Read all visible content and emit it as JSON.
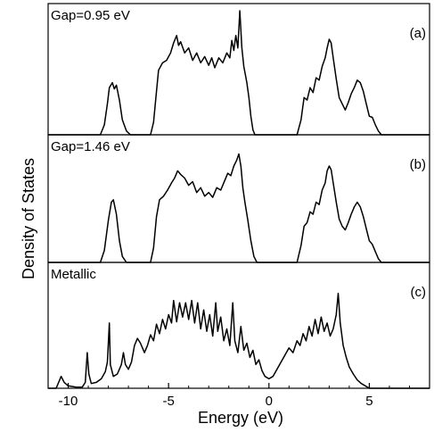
{
  "chart_data": {
    "type": "line",
    "xlabel": "Energy (eV)",
    "ylabel": "Density of States",
    "xlim": [
      -11,
      8
    ],
    "xticks": [
      {
        "value": -10,
        "label": "-10"
      },
      {
        "value": -5,
        "label": "-5"
      },
      {
        "value": 0,
        "label": "0"
      },
      {
        "value": 5,
        "label": "5"
      }
    ],
    "grid": false,
    "panels": [
      {
        "id": "a",
        "tag": "(a)",
        "label": "Gap=0.95 eV",
        "series": [
          {
            "x": -11,
            "y": 0
          },
          {
            "x": -8.4,
            "y": 0
          },
          {
            "x": -8.2,
            "y": 0.08
          },
          {
            "x": -8.05,
            "y": 0.25
          },
          {
            "x": -7.95,
            "y": 0.38
          },
          {
            "x": -7.8,
            "y": 0.42
          },
          {
            "x": -7.7,
            "y": 0.37
          },
          {
            "x": -7.6,
            "y": 0.4
          },
          {
            "x": -7.45,
            "y": 0.28
          },
          {
            "x": -7.3,
            "y": 0.12
          },
          {
            "x": -7.1,
            "y": 0.03
          },
          {
            "x": -6.9,
            "y": 0
          },
          {
            "x": -5.9,
            "y": 0
          },
          {
            "x": -5.75,
            "y": 0.1
          },
          {
            "x": -5.6,
            "y": 0.35
          },
          {
            "x": -5.5,
            "y": 0.52
          },
          {
            "x": -5.3,
            "y": 0.58
          },
          {
            "x": -5.1,
            "y": 0.6
          },
          {
            "x": -4.9,
            "y": 0.66
          },
          {
            "x": -4.75,
            "y": 0.74
          },
          {
            "x": -4.6,
            "y": 0.8
          },
          {
            "x": -4.5,
            "y": 0.72
          },
          {
            "x": -4.4,
            "y": 0.75
          },
          {
            "x": -4.2,
            "y": 0.66
          },
          {
            "x": -4.0,
            "y": 0.7
          },
          {
            "x": -3.8,
            "y": 0.6
          },
          {
            "x": -3.6,
            "y": 0.66
          },
          {
            "x": -3.4,
            "y": 0.58
          },
          {
            "x": -3.2,
            "y": 0.63
          },
          {
            "x": -3.0,
            "y": 0.56
          },
          {
            "x": -2.85,
            "y": 0.62
          },
          {
            "x": -2.7,
            "y": 0.54
          },
          {
            "x": -2.5,
            "y": 0.62
          },
          {
            "x": -2.3,
            "y": 0.58
          },
          {
            "x": -2.1,
            "y": 0.66
          },
          {
            "x": -1.95,
            "y": 0.62
          },
          {
            "x": -1.85,
            "y": 0.76
          },
          {
            "x": -1.75,
            "y": 0.68
          },
          {
            "x": -1.65,
            "y": 0.8
          },
          {
            "x": -1.55,
            "y": 0.7
          },
          {
            "x": -1.45,
            "y": 1.0
          },
          {
            "x": -1.35,
            "y": 0.7
          },
          {
            "x": -1.25,
            "y": 0.55
          },
          {
            "x": -1.1,
            "y": 0.42
          },
          {
            "x": -1.0,
            "y": 0.3
          },
          {
            "x": -0.9,
            "y": 0.15
          },
          {
            "x": -0.8,
            "y": 0.04
          },
          {
            "x": -0.7,
            "y": 0
          },
          {
            "x": 1.4,
            "y": 0
          },
          {
            "x": 1.6,
            "y": 0.12
          },
          {
            "x": 1.75,
            "y": 0.3
          },
          {
            "x": 1.9,
            "y": 0.28
          },
          {
            "x": 2.05,
            "y": 0.38
          },
          {
            "x": 2.2,
            "y": 0.34
          },
          {
            "x": 2.35,
            "y": 0.46
          },
          {
            "x": 2.5,
            "y": 0.44
          },
          {
            "x": 2.65,
            "y": 0.55
          },
          {
            "x": 2.8,
            "y": 0.62
          },
          {
            "x": 2.9,
            "y": 0.7
          },
          {
            "x": 3.0,
            "y": 0.77
          },
          {
            "x": 3.1,
            "y": 0.74
          },
          {
            "x": 3.2,
            "y": 0.62
          },
          {
            "x": 3.35,
            "y": 0.45
          },
          {
            "x": 3.5,
            "y": 0.3
          },
          {
            "x": 3.65,
            "y": 0.25
          },
          {
            "x": 3.8,
            "y": 0.2
          },
          {
            "x": 3.95,
            "y": 0.26
          },
          {
            "x": 4.1,
            "y": 0.33
          },
          {
            "x": 4.25,
            "y": 0.38
          },
          {
            "x": 4.4,
            "y": 0.44
          },
          {
            "x": 4.55,
            "y": 0.42
          },
          {
            "x": 4.7,
            "y": 0.35
          },
          {
            "x": 4.85,
            "y": 0.25
          },
          {
            "x": 5.0,
            "y": 0.15
          },
          {
            "x": 5.15,
            "y": 0.14
          },
          {
            "x": 5.3,
            "y": 0.08
          },
          {
            "x": 5.45,
            "y": 0.03
          },
          {
            "x": 5.6,
            "y": 0
          },
          {
            "x": 8,
            "y": 0
          }
        ]
      },
      {
        "id": "b",
        "tag": "(b)",
        "label": "Gap=1.46 eV",
        "series": [
          {
            "x": -11,
            "y": 0
          },
          {
            "x": -8.4,
            "y": 0
          },
          {
            "x": -8.2,
            "y": 0.1
          },
          {
            "x": -8.0,
            "y": 0.35
          },
          {
            "x": -7.85,
            "y": 0.5
          },
          {
            "x": -7.75,
            "y": 0.52
          },
          {
            "x": -7.6,
            "y": 0.4
          },
          {
            "x": -7.45,
            "y": 0.18
          },
          {
            "x": -7.3,
            "y": 0.05
          },
          {
            "x": -7.1,
            "y": 0
          },
          {
            "x": -5.9,
            "y": 0
          },
          {
            "x": -5.75,
            "y": 0.12
          },
          {
            "x": -5.6,
            "y": 0.38
          },
          {
            "x": -5.45,
            "y": 0.52
          },
          {
            "x": -5.25,
            "y": 0.55
          },
          {
            "x": -5.05,
            "y": 0.6
          },
          {
            "x": -4.85,
            "y": 0.66
          },
          {
            "x": -4.7,
            "y": 0.7
          },
          {
            "x": -4.55,
            "y": 0.76
          },
          {
            "x": -4.4,
            "y": 0.73
          },
          {
            "x": -4.2,
            "y": 0.7
          },
          {
            "x": -4.0,
            "y": 0.64
          },
          {
            "x": -3.8,
            "y": 0.67
          },
          {
            "x": -3.6,
            "y": 0.58
          },
          {
            "x": -3.4,
            "y": 0.62
          },
          {
            "x": -3.2,
            "y": 0.55
          },
          {
            "x": -3.0,
            "y": 0.58
          },
          {
            "x": -2.8,
            "y": 0.54
          },
          {
            "x": -2.6,
            "y": 0.62
          },
          {
            "x": -2.4,
            "y": 0.6
          },
          {
            "x": -2.2,
            "y": 0.68
          },
          {
            "x": -2.05,
            "y": 0.74
          },
          {
            "x": -1.9,
            "y": 0.72
          },
          {
            "x": -1.75,
            "y": 0.8
          },
          {
            "x": -1.6,
            "y": 0.85
          },
          {
            "x": -1.5,
            "y": 0.9
          },
          {
            "x": -1.4,
            "y": 0.8
          },
          {
            "x": -1.3,
            "y": 0.62
          },
          {
            "x": -1.2,
            "y": 0.5
          },
          {
            "x": -1.05,
            "y": 0.35
          },
          {
            "x": -0.9,
            "y": 0.18
          },
          {
            "x": -0.75,
            "y": 0.05
          },
          {
            "x": -0.6,
            "y": 0
          },
          {
            "x": 1.4,
            "y": 0
          },
          {
            "x": 1.6,
            "y": 0.14
          },
          {
            "x": 1.75,
            "y": 0.3
          },
          {
            "x": 1.9,
            "y": 0.33
          },
          {
            "x": 2.05,
            "y": 0.42
          },
          {
            "x": 2.2,
            "y": 0.4
          },
          {
            "x": 2.35,
            "y": 0.5
          },
          {
            "x": 2.5,
            "y": 0.48
          },
          {
            "x": 2.65,
            "y": 0.6
          },
          {
            "x": 2.8,
            "y": 0.66
          },
          {
            "x": 2.9,
            "y": 0.76
          },
          {
            "x": 3.0,
            "y": 0.8
          },
          {
            "x": 3.1,
            "y": 0.77
          },
          {
            "x": 3.2,
            "y": 0.66
          },
          {
            "x": 3.35,
            "y": 0.5
          },
          {
            "x": 3.5,
            "y": 0.36
          },
          {
            "x": 3.65,
            "y": 0.3
          },
          {
            "x": 3.8,
            "y": 0.27
          },
          {
            "x": 3.95,
            "y": 0.33
          },
          {
            "x": 4.1,
            "y": 0.4
          },
          {
            "x": 4.25,
            "y": 0.46
          },
          {
            "x": 4.4,
            "y": 0.5
          },
          {
            "x": 4.55,
            "y": 0.46
          },
          {
            "x": 4.7,
            "y": 0.38
          },
          {
            "x": 4.85,
            "y": 0.28
          },
          {
            "x": 5.0,
            "y": 0.18
          },
          {
            "x": 5.15,
            "y": 0.15
          },
          {
            "x": 5.3,
            "y": 0.09
          },
          {
            "x": 5.45,
            "y": 0.03
          },
          {
            "x": 5.6,
            "y": 0
          },
          {
            "x": 8,
            "y": 0
          }
        ]
      },
      {
        "id": "c",
        "tag": "(c)",
        "label": "Metallic",
        "series": [
          {
            "x": -11,
            "y": 0
          },
          {
            "x": -10.6,
            "y": 0
          },
          {
            "x": -10.45,
            "y": 0.06
          },
          {
            "x": -10.35,
            "y": 0.1
          },
          {
            "x": -10.2,
            "y": 0.05
          },
          {
            "x": -10.0,
            "y": 0.02
          },
          {
            "x": -9.6,
            "y": 0.01
          },
          {
            "x": -9.3,
            "y": 0.01
          },
          {
            "x": -9.15,
            "y": 0.05
          },
          {
            "x": -9.05,
            "y": 0.3
          },
          {
            "x": -8.97,
            "y": 0.12
          },
          {
            "x": -8.85,
            "y": 0.04
          },
          {
            "x": -8.6,
            "y": 0.05
          },
          {
            "x": -8.35,
            "y": 0.08
          },
          {
            "x": -8.15,
            "y": 0.14
          },
          {
            "x": -8.05,
            "y": 0.22
          },
          {
            "x": -7.95,
            "y": 0.55
          },
          {
            "x": -7.9,
            "y": 0.2
          },
          {
            "x": -7.75,
            "y": 0.1
          },
          {
            "x": -7.55,
            "y": 0.12
          },
          {
            "x": -7.35,
            "y": 0.2
          },
          {
            "x": -7.25,
            "y": 0.3
          },
          {
            "x": -7.15,
            "y": 0.2
          },
          {
            "x": -7.0,
            "y": 0.16
          },
          {
            "x": -6.85,
            "y": 0.22
          },
          {
            "x": -6.7,
            "y": 0.36
          },
          {
            "x": -6.55,
            "y": 0.42
          },
          {
            "x": -6.4,
            "y": 0.38
          },
          {
            "x": -6.2,
            "y": 0.3
          },
          {
            "x": -6.05,
            "y": 0.36
          },
          {
            "x": -5.9,
            "y": 0.45
          },
          {
            "x": -5.75,
            "y": 0.4
          },
          {
            "x": -5.6,
            "y": 0.54
          },
          {
            "x": -5.45,
            "y": 0.46
          },
          {
            "x": -5.3,
            "y": 0.58
          },
          {
            "x": -5.15,
            "y": 0.5
          },
          {
            "x": -5.0,
            "y": 0.62
          },
          {
            "x": -4.85,
            "y": 0.55
          },
          {
            "x": -4.75,
            "y": 0.74
          },
          {
            "x": -4.6,
            "y": 0.56
          },
          {
            "x": -4.45,
            "y": 0.72
          },
          {
            "x": -4.3,
            "y": 0.6
          },
          {
            "x": -4.15,
            "y": 0.72
          },
          {
            "x": -4.0,
            "y": 0.58
          },
          {
            "x": -3.85,
            "y": 0.74
          },
          {
            "x": -3.7,
            "y": 0.55
          },
          {
            "x": -3.55,
            "y": 0.72
          },
          {
            "x": -3.4,
            "y": 0.5
          },
          {
            "x": -3.25,
            "y": 0.66
          },
          {
            "x": -3.1,
            "y": 0.48
          },
          {
            "x": -2.95,
            "y": 0.62
          },
          {
            "x": -2.8,
            "y": 0.44
          },
          {
            "x": -2.65,
            "y": 0.72
          },
          {
            "x": -2.55,
            "y": 0.48
          },
          {
            "x": -2.4,
            "y": 0.6
          },
          {
            "x": -2.25,
            "y": 0.4
          },
          {
            "x": -2.1,
            "y": 0.5
          },
          {
            "x": -1.95,
            "y": 0.36
          },
          {
            "x": -1.8,
            "y": 0.72
          },
          {
            "x": -1.7,
            "y": 0.4
          },
          {
            "x": -1.55,
            "y": 0.3
          },
          {
            "x": -1.4,
            "y": 0.52
          },
          {
            "x": -1.25,
            "y": 0.32
          },
          {
            "x": -1.1,
            "y": 0.38
          },
          {
            "x": -0.95,
            "y": 0.26
          },
          {
            "x": -0.8,
            "y": 0.32
          },
          {
            "x": -0.65,
            "y": 0.2
          },
          {
            "x": -0.5,
            "y": 0.24
          },
          {
            "x": -0.35,
            "y": 0.15
          },
          {
            "x": -0.2,
            "y": 0.1
          },
          {
            "x": 0.0,
            "y": 0.08
          },
          {
            "x": 0.2,
            "y": 0.1
          },
          {
            "x": 0.4,
            "y": 0.16
          },
          {
            "x": 0.6,
            "y": 0.22
          },
          {
            "x": 0.8,
            "y": 0.28
          },
          {
            "x": 1.0,
            "y": 0.34
          },
          {
            "x": 1.2,
            "y": 0.3
          },
          {
            "x": 1.4,
            "y": 0.4
          },
          {
            "x": 1.55,
            "y": 0.36
          },
          {
            "x": 1.7,
            "y": 0.46
          },
          {
            "x": 1.85,
            "y": 0.4
          },
          {
            "x": 2.0,
            "y": 0.52
          },
          {
            "x": 2.15,
            "y": 0.44
          },
          {
            "x": 2.3,
            "y": 0.58
          },
          {
            "x": 2.45,
            "y": 0.46
          },
          {
            "x": 2.6,
            "y": 0.6
          },
          {
            "x": 2.75,
            "y": 0.48
          },
          {
            "x": 2.9,
            "y": 0.55
          },
          {
            "x": 3.05,
            "y": 0.44
          },
          {
            "x": 3.2,
            "y": 0.5
          },
          {
            "x": 3.35,
            "y": 0.62
          },
          {
            "x": 3.45,
            "y": 0.8
          },
          {
            "x": 3.55,
            "y": 0.55
          },
          {
            "x": 3.7,
            "y": 0.36
          },
          {
            "x": 3.85,
            "y": 0.26
          },
          {
            "x": 4.0,
            "y": 0.18
          },
          {
            "x": 4.2,
            "y": 0.12
          },
          {
            "x": 4.4,
            "y": 0.07
          },
          {
            "x": 4.6,
            "y": 0.04
          },
          {
            "x": 4.8,
            "y": 0.02
          },
          {
            "x": 5.0,
            "y": 0
          },
          {
            "x": 8,
            "y": 0
          }
        ]
      }
    ]
  }
}
